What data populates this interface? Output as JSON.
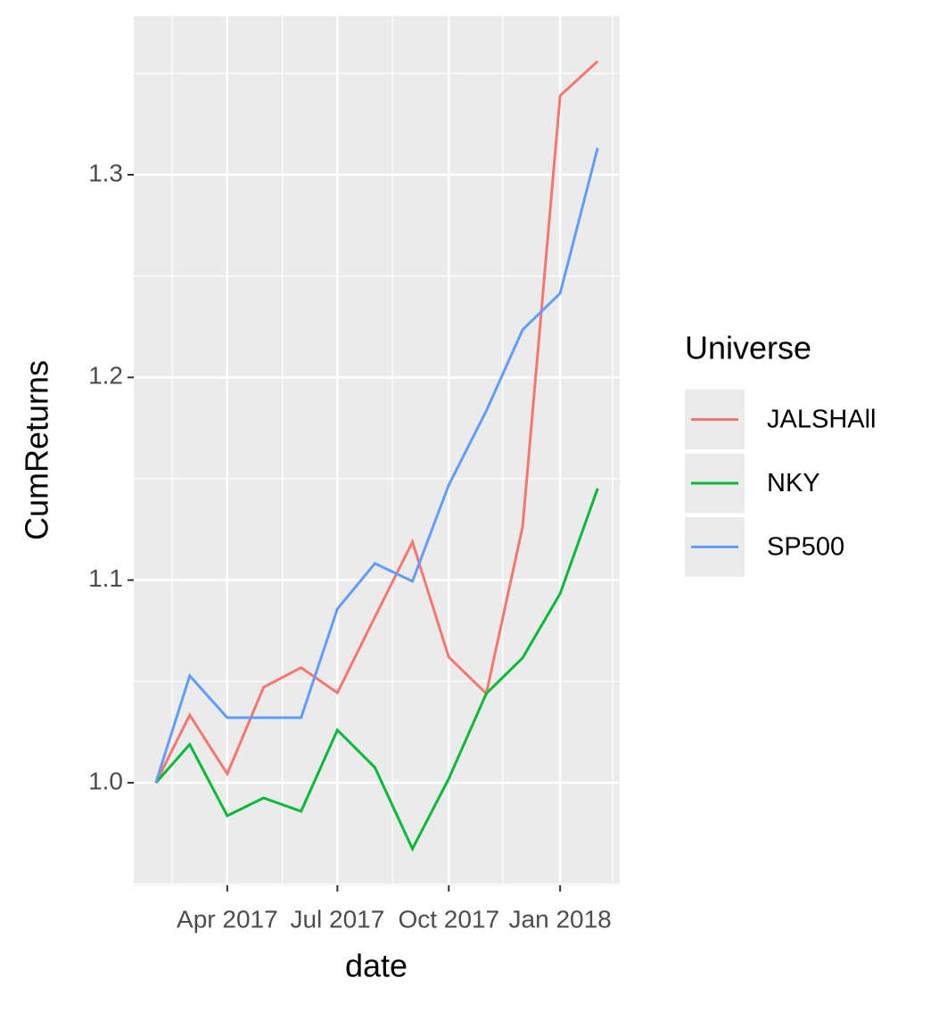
{
  "chart_data": {
    "type": "line",
    "x_label": "date",
    "y_label": "CumReturns",
    "legend_title": "Universe",
    "x": [
      "2017-02",
      "2017-03",
      "2017-04",
      "2017-05",
      "2017-06",
      "2017-07",
      "2017-08",
      "2017-09",
      "2017-10",
      "2017-11",
      "2017-12",
      "2018-01",
      "2018-02"
    ],
    "series": [
      {
        "name": "JALSHAll",
        "color": "#F8766D",
        "values": [
          1.0,
          1.0334,
          1.0044,
          1.0471,
          1.0568,
          1.0444,
          1.0818,
          1.1188,
          1.062,
          1.044,
          1.1263,
          1.339,
          1.356
        ]
      },
      {
        "name": "NKY",
        "color": "#00BA38",
        "values": [
          1.0,
          1.0189,
          0.9837,
          0.9925,
          0.9859,
          1.026,
          1.0075,
          0.9674,
          1.002,
          1.044,
          1.0616,
          1.0933,
          1.1452
        ]
      },
      {
        "name": "SP500",
        "color": "#619CFF",
        "values": [
          1.0,
          1.0528,
          1.0321,
          1.0321,
          1.0321,
          1.0858,
          1.1082,
          1.0994,
          1.1469,
          1.1835,
          1.2235,
          1.2415,
          1.3132
        ]
      }
    ],
    "xlim": [
      "2017-02",
      "2018-02"
    ],
    "xticks": [
      {
        "value": "2017-04",
        "label": "Apr 2017"
      },
      {
        "value": "2017-07",
        "label": "Jul 2017"
      },
      {
        "value": "2017-10",
        "label": "Oct 2017"
      },
      {
        "value": "2018-01",
        "label": "Jan 2018"
      }
    ],
    "ylim": [
      0.9494,
      1.3783
    ],
    "yticks": [
      {
        "value": 1.0,
        "label": "1.0"
      },
      {
        "value": 1.1,
        "label": "1.1"
      },
      {
        "value": 1.2,
        "label": "1.2"
      },
      {
        "value": 1.3,
        "label": "1.3"
      }
    ],
    "grid": true
  }
}
